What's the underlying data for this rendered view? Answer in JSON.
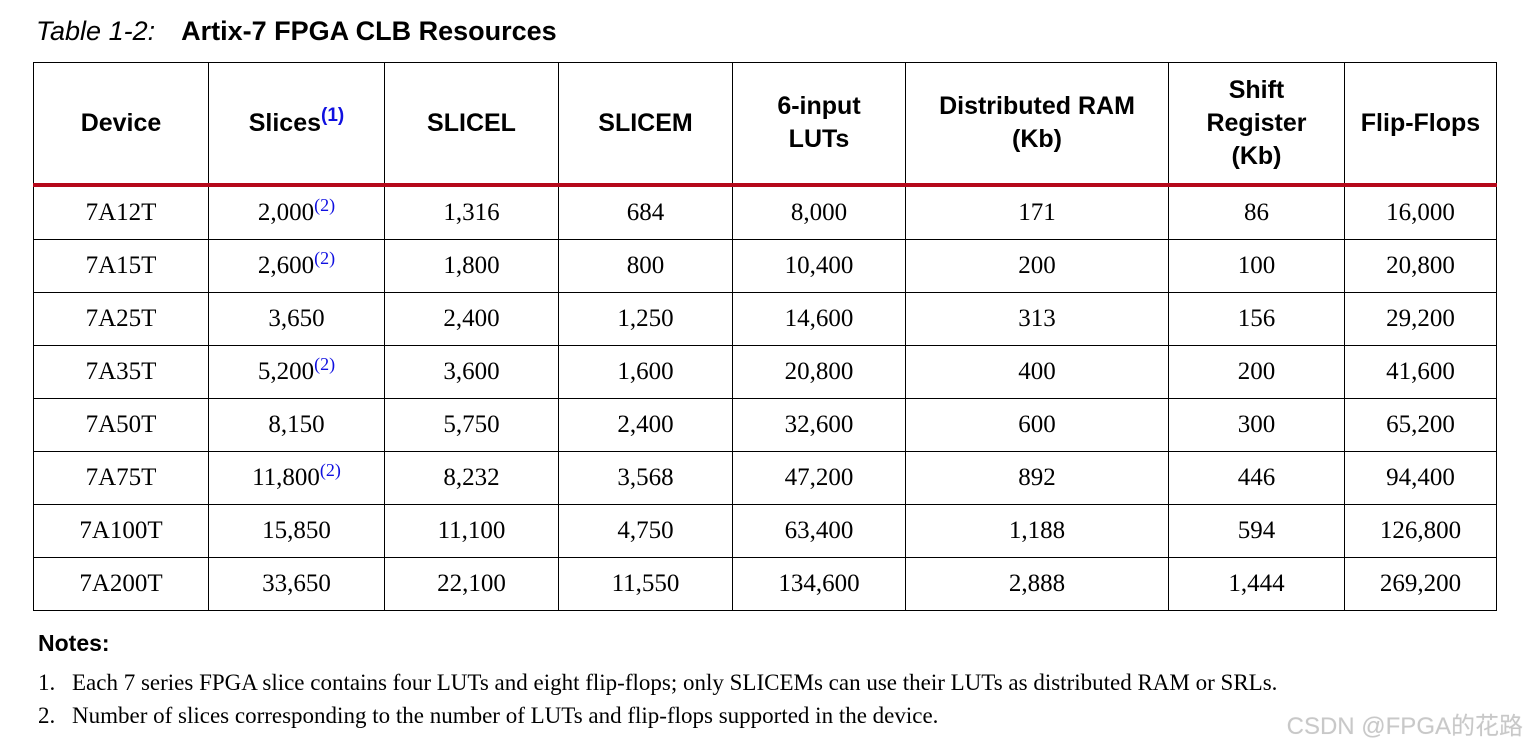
{
  "title": {
    "label": "Table 1-2:",
    "text": "Artix-7 FPGA CLB Resources"
  },
  "table": {
    "header_rule_color": "#b5081a",
    "footnote_color": "#1010e0",
    "columns": [
      {
        "label": "Device",
        "note": null
      },
      {
        "label": "Slices",
        "note": "(1)"
      },
      {
        "label": "SLICEL",
        "note": null
      },
      {
        "label": "SLICEM",
        "note": null
      },
      {
        "label": "6-input LUTs",
        "note": null
      },
      {
        "label": "Distributed RAM (Kb)",
        "note": null
      },
      {
        "label": "Shift Register (Kb)",
        "note": null
      },
      {
        "label": "Flip-Flops",
        "note": null
      }
    ],
    "rows": [
      {
        "cells": [
          "7A12T",
          "2,000",
          "1,316",
          "684",
          "8,000",
          "171",
          "86",
          "16,000"
        ],
        "slices_note": "(2)"
      },
      {
        "cells": [
          "7A15T",
          "2,600",
          "1,800",
          "800",
          "10,400",
          "200",
          "100",
          "20,800"
        ],
        "slices_note": "(2)"
      },
      {
        "cells": [
          "7A25T",
          "3,650",
          "2,400",
          "1,250",
          "14,600",
          "313",
          "156",
          "29,200"
        ],
        "slices_note": null
      },
      {
        "cells": [
          "7A35T",
          "5,200",
          "3,600",
          "1,600",
          "20,800",
          "400",
          "200",
          "41,600"
        ],
        "slices_note": "(2)"
      },
      {
        "cells": [
          "7A50T",
          "8,150",
          "5,750",
          "2,400",
          "32,600",
          "600",
          "300",
          "65,200"
        ],
        "slices_note": null
      },
      {
        "cells": [
          "7A75T",
          "11,800",
          "8,232",
          "3,568",
          "47,200",
          "892",
          "446",
          "94,400"
        ],
        "slices_note": "(2)"
      },
      {
        "cells": [
          "7A100T",
          "15,850",
          "11,100",
          "4,750",
          "63,400",
          "1,188",
          "594",
          "126,800"
        ],
        "slices_note": null
      },
      {
        "cells": [
          "7A200T",
          "33,650",
          "22,100",
          "11,550",
          "134,600",
          "2,888",
          "1,444",
          "269,200"
        ],
        "slices_note": null
      }
    ]
  },
  "notes": {
    "heading": "Notes:",
    "items": [
      {
        "num": "1.",
        "text": "Each 7 series FPGA slice contains four LUTs and eight flip-flops; only SLICEMs can use their LUTs as distributed RAM or SRLs."
      },
      {
        "num": "2.",
        "text": "Number of slices corresponding to the number of LUTs and flip-flops supported in the device."
      }
    ]
  },
  "watermark": "CSDN @FPGA的花路"
}
